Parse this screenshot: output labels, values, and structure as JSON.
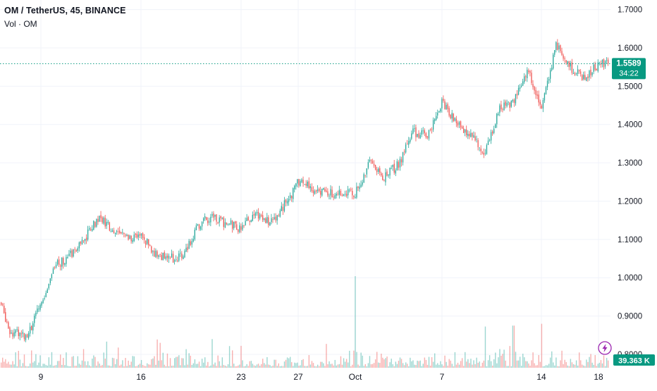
{
  "header": {
    "symbol_title": "OM / TetherUS, 45, BINANCE",
    "volume_label": "Vol · OM"
  },
  "price_badge": {
    "price": "1.5589",
    "countdown": "34:22"
  },
  "volume_badge": {
    "value": "39.363 K"
  },
  "colors": {
    "up": "#26a69a",
    "down": "#ef5350",
    "grid": "#f0f3fa",
    "axis_text": "#131722",
    "last_price": "#089981",
    "volume_icon": "#9c27b0"
  },
  "chart_data": {
    "type": "candlestick",
    "interval_minutes": 45,
    "y_axis": {
      "min": 0.765,
      "max": 1.725,
      "ticks": [
        "1.7000",
        "1.6000",
        "1.5000",
        "1.4000",
        "1.3000",
        "1.2000",
        "1.1000",
        "1.0000",
        "0.9000",
        "0.8000"
      ],
      "position": "right"
    },
    "x_axis": {
      "ticks": [
        "9",
        "16",
        "23",
        "27",
        "Oct",
        "7",
        "14",
        "18"
      ]
    },
    "last_price": 1.5589,
    "grid": true,
    "price_path": [
      {
        "date": "Sep 5",
        "price": 0.935
      },
      {
        "date": "Sep 7",
        "price": 0.86
      },
      {
        "date": "Sep 8",
        "price": 0.85
      },
      {
        "date": "Sep 9",
        "price": 0.93
      },
      {
        "date": "Sep 10",
        "price": 1.03
      },
      {
        "date": "Sep 11",
        "price": 1.06
      },
      {
        "date": "Sep 12",
        "price": 1.1
      },
      {
        "date": "Sep 13",
        "price": 1.16
      },
      {
        "date": "Sep 14",
        "price": 1.12
      },
      {
        "date": "Sep 15",
        "price": 1.105
      },
      {
        "date": "Sep 16",
        "price": 1.11
      },
      {
        "date": "Sep 17",
        "price": 1.06
      },
      {
        "date": "Sep 18",
        "price": 1.05
      },
      {
        "date": "Sep 19",
        "price": 1.06
      },
      {
        "date": "Sep 20",
        "price": 1.14
      },
      {
        "date": "Sep 21",
        "price": 1.16
      },
      {
        "date": "Sep 22",
        "price": 1.14
      },
      {
        "date": "Sep 23",
        "price": 1.13
      },
      {
        "date": "Sep 24",
        "price": 1.17
      },
      {
        "date": "Sep 25",
        "price": 1.14
      },
      {
        "date": "Sep 26",
        "price": 1.19
      },
      {
        "date": "Sep 27",
        "price": 1.25
      },
      {
        "date": "Sep 28",
        "price": 1.23
      },
      {
        "date": "Sep 29",
        "price": 1.22
      },
      {
        "date": "Sep 30",
        "price": 1.225
      },
      {
        "date": "Oct 1",
        "price": 1.22
      },
      {
        "date": "Oct 2",
        "price": 1.3
      },
      {
        "date": "Oct 3",
        "price": 1.26
      },
      {
        "date": "Oct 4",
        "price": 1.3
      },
      {
        "date": "Oct 5",
        "price": 1.38
      },
      {
        "date": "Oct 6",
        "price": 1.37
      },
      {
        "date": "Oct 7",
        "price": 1.46
      },
      {
        "date": "Oct 8",
        "price": 1.4
      },
      {
        "date": "Oct 9",
        "price": 1.37
      },
      {
        "date": "Oct 10",
        "price": 1.33
      },
      {
        "date": "Oct 11",
        "price": 1.44
      },
      {
        "date": "Oct 12",
        "price": 1.46
      },
      {
        "date": "Oct 13",
        "price": 1.54
      },
      {
        "date": "Oct 14",
        "price": 1.44
      },
      {
        "date": "Oct 15",
        "price": 1.61
      },
      {
        "date": "Oct 16",
        "price": 1.55
      },
      {
        "date": "Oct 17",
        "price": 1.52
      },
      {
        "date": "Oct 18",
        "price": 1.5589
      }
    ],
    "volume_spikes": [
      {
        "date": "Oct 1",
        "relative": 1.0
      },
      {
        "date": "Oct 14",
        "relative": 0.48
      },
      {
        "date": "Oct 12",
        "relative": 0.46
      },
      {
        "date": "Oct 10",
        "relative": 0.45
      }
    ]
  }
}
